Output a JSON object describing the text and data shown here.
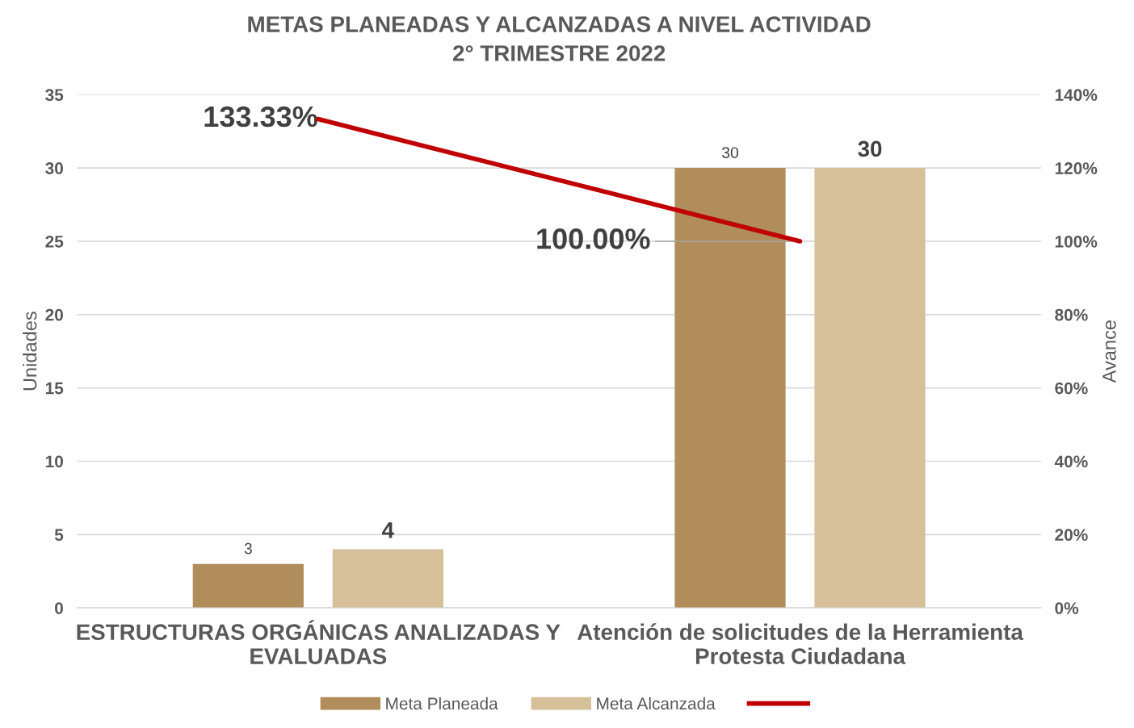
{
  "chart_data": {
    "type": "bar",
    "title": "METAS PLANEADAS Y ALCANZADAS A NIVEL ACTIVIDAD\n2° TRIMESTRE 2022",
    "ylabel": "Unidades",
    "y2label": "Avance",
    "categories": [
      "ESTRUCTURAS ORGÁNICAS ANALIZADAS Y\nEVALUADAS",
      "Atención de solicitudes de la Herramienta\nProtesta Ciudadana"
    ],
    "series": [
      {
        "name": "Meta Planeada",
        "color": "#b18d5c",
        "values": [
          3,
          30
        ],
        "value_labels": [
          "3",
          "30"
        ]
      },
      {
        "name": "Meta Alcanzada",
        "color": "#d6c09a",
        "values": [
          4,
          30
        ],
        "value_labels": [
          "4",
          "30"
        ]
      },
      {
        "type": "line",
        "axis": "y2",
        "color": "#c00000",
        "values": [
          133.33,
          100.0
        ],
        "value_labels": [
          "133.33%",
          "100.00%"
        ]
      }
    ],
    "ylim": [
      0,
      35
    ],
    "yticks": [
      0,
      5,
      10,
      15,
      20,
      25,
      30,
      35
    ],
    "y2lim": [
      0,
      140
    ],
    "y2ticks": [
      {
        "value": 0,
        "label": "0%"
      },
      {
        "value": 20,
        "label": "20%"
      },
      {
        "value": 40,
        "label": "40%"
      },
      {
        "value": 60,
        "label": "60%"
      },
      {
        "value": 80,
        "label": "80%"
      },
      {
        "value": 100,
        "label": "100%"
      },
      {
        "value": 120,
        "label": "120%"
      },
      {
        "value": 140,
        "label": "140%"
      }
    ],
    "grid": "y",
    "legend": "bottom"
  }
}
